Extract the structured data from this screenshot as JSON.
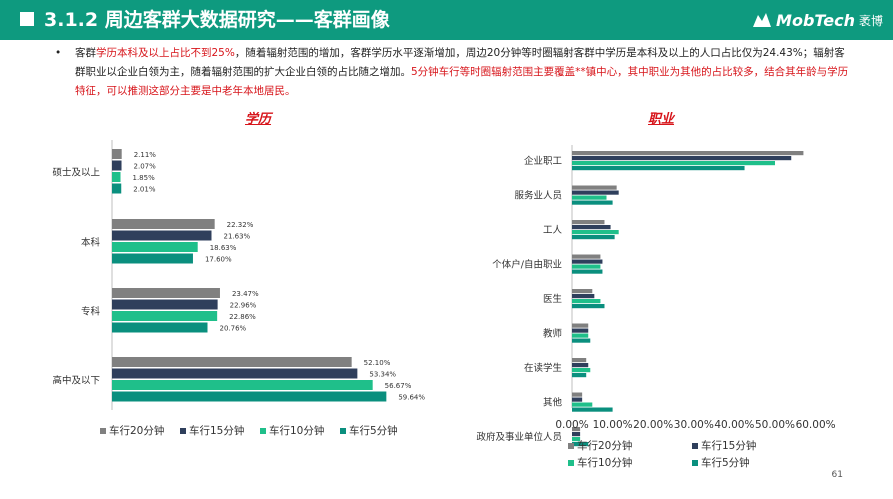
{
  "header": {
    "title": "3.1.2 周边客群大数据研究——客群画像",
    "logo_text": "MobTech",
    "logo_cn": "袤博"
  },
  "summary": {
    "bullet": "•",
    "p1": "客群",
    "p2": "学历本科及以上占比不到25%",
    "p3": "，随着辐射范围的增加，客群学历水平逐渐增加，周边20分钟等时圈辐射客群中学历是本科及以上的人口占比仅为24.43%；辐射客群职业以企业白领为主，随着辐射范围的扩大企业白领的占比随之增加。",
    "p4": "5分钟车行等时圈辐射范围主要覆盖**镇中心，其中职业为其他的占比较多，结合其年龄与学历特征，可以推测这部分主要是中老年本地居民。"
  },
  "page_number": "61",
  "colors": {
    "header_bg": "#0e9a7f",
    "s20": "#808080",
    "s15": "#2f3f5c",
    "s10": "#1fbf8a",
    "s5": "#0a8f7e",
    "accent_red": "#d7141a"
  },
  "chart_data": [
    {
      "type": "bar",
      "orientation": "horizontal",
      "title": "学历",
      "categories": [
        "硕士及以上",
        "本科",
        "专科",
        "高中及以下"
      ],
      "series": [
        {
          "name": "车行20分钟",
          "values": [
            2.11,
            22.32,
            23.47,
            52.1
          ]
        },
        {
          "name": "车行15分钟",
          "values": [
            2.07,
            21.63,
            22.96,
            53.34
          ]
        },
        {
          "name": "车行10分钟",
          "values": [
            1.85,
            18.63,
            22.86,
            56.67
          ]
        },
        {
          "name": "车行5分钟",
          "values": [
            2.01,
            17.6,
            20.76,
            59.64
          ]
        }
      ],
      "data_labels": [
        [
          "2.11%",
          "2.07%",
          "1.85%",
          "2.01%"
        ],
        [
          "22.32%",
          "21.63%",
          "18.63%",
          "17.60%"
        ],
        [
          "23.47%",
          "22.96%",
          "22.86%",
          "20.76%"
        ],
        [
          "52.10%",
          "53.34%",
          "56.67%",
          "59.64%"
        ]
      ],
      "legend": "bottom"
    },
    {
      "type": "bar",
      "orientation": "horizontal",
      "title": "职业",
      "categories": [
        "企业职工",
        "服务业人员",
        "工人",
        "个体户/自由职业",
        "医生",
        "教师",
        "在读学生",
        "其他",
        "政府及事业单位人员"
      ],
      "series": [
        {
          "name": "车行20分钟",
          "values": [
            57.0,
            11.0,
            8.0,
            7.0,
            5.0,
            4.0,
            3.5,
            2.5,
            2.0
          ]
        },
        {
          "name": "车行15分钟",
          "values": [
            54.0,
            11.5,
            9.5,
            7.5,
            5.5,
            4.0,
            4.0,
            2.5,
            2.0
          ]
        },
        {
          "name": "车行10分钟",
          "values": [
            50.0,
            8.5,
            11.5,
            7.0,
            7.0,
            4.0,
            4.5,
            5.0,
            2.0
          ]
        },
        {
          "name": "车行5分钟",
          "values": [
            42.5,
            10.0,
            10.5,
            7.5,
            8.0,
            4.5,
            3.5,
            10.0,
            4.0
          ]
        }
      ],
      "xlim": [
        0,
        60
      ],
      "x_ticks": [
        "0.00%",
        "10.00%",
        "20.00%",
        "30.00%",
        "40.00%",
        "50.00%",
        "60.00%"
      ],
      "legend": "bottom"
    }
  ]
}
